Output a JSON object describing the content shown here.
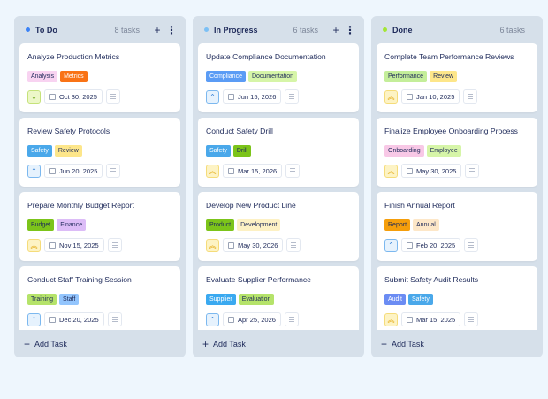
{
  "priority_styles": {
    "low": {
      "icon": "chevron-down-icon",
      "glyph": "⌄",
      "bg": "#ecf7c8",
      "border": "#c5e27a",
      "color": "#65a30d"
    },
    "medium": {
      "icon": "chevron-up-icon",
      "glyph": "⌃",
      "bg": "#e6f2fd",
      "border": "#7cb8ef",
      "color": "#2b7bd6"
    },
    "high": {
      "icon": "double-chevron-up-icon",
      "glyph": "︽",
      "bg": "#fdf3c4",
      "border": "#f5dc7a",
      "color": "#e0a200"
    }
  },
  "columns": [
    {
      "title": "To Do",
      "count": "8 tasks",
      "dot": "#3b82f6",
      "add_label": "Add Task",
      "cards": [
        {
          "title": "Analyze Production Metrics",
          "tags": [
            {
              "label": "Analysis",
              "bg": "#f8d3f1",
              "fg": "#1e2a5a"
            },
            {
              "label": "Metrics",
              "bg": "#f97316",
              "fg": "#fff"
            }
          ],
          "priority": "low",
          "date": "Oct 30, 2025"
        },
        {
          "title": "Review Safety Protocols",
          "tags": [
            {
              "label": "Safety",
              "bg": "#4aa8ea",
              "fg": "#fff"
            },
            {
              "label": "Review",
              "bg": "#fde68a",
              "fg": "#1e2a5a"
            }
          ],
          "priority": "medium",
          "date": "Jun 20, 2025"
        },
        {
          "title": "Prepare Monthly Budget Report",
          "tags": [
            {
              "label": "Budget",
              "bg": "#7cc41a",
              "fg": "#1e2a5a"
            },
            {
              "label": "Finance",
              "bg": "#dcbcf7",
              "fg": "#1e2a5a"
            }
          ],
          "priority": "high",
          "date": "Nov 15, 2025"
        },
        {
          "title": "Conduct Staff Training Session",
          "tags": [
            {
              "label": "Training",
              "bg": "#b5e36a",
              "fg": "#1e2a5a"
            },
            {
              "label": "Staff",
              "bg": "#93c5fd",
              "fg": "#1e2a5a"
            }
          ],
          "priority": "medium",
          "date": "Dec 20, 2025"
        }
      ]
    },
    {
      "title": "In Progress",
      "count": "6 tasks",
      "dot": "#7cc0f5",
      "add_label": "Add Task",
      "cards": [
        {
          "title": "Update Compliance Documentation",
          "tags": [
            {
              "label": "Compliance",
              "bg": "#5b9cf5",
              "fg": "#fff"
            },
            {
              "label": "Documentation",
              "bg": "#d6f5a8",
              "fg": "#1e2a5a"
            }
          ],
          "priority": "medium",
          "date": "Jun 15, 2026"
        },
        {
          "title": "Conduct Safety Drill",
          "tags": [
            {
              "label": "Safety",
              "bg": "#4aa8ea",
              "fg": "#fff"
            },
            {
              "label": "Drill",
              "bg": "#7cc41a",
              "fg": "#1e2a5a"
            }
          ],
          "priority": "high",
          "date": "Mar 15, 2026"
        },
        {
          "title": "Develop New Product Line",
          "tags": [
            {
              "label": "Product",
              "bg": "#7cc41a",
              "fg": "#1e2a5a"
            },
            {
              "label": "Development",
              "bg": "#fdf1c4",
              "fg": "#1e2a5a"
            }
          ],
          "priority": "high",
          "date": "May 30, 2026"
        },
        {
          "title": "Evaluate Supplier Performance",
          "tags": [
            {
              "label": "Supplier",
              "bg": "#3aa9f0",
              "fg": "#fff"
            },
            {
              "label": "Evaluation",
              "bg": "#b5e36a",
              "fg": "#1e2a5a"
            }
          ],
          "priority": "medium",
          "date": "Apr 25, 2026"
        }
      ]
    },
    {
      "title": "Done",
      "count": "6 tasks",
      "dot": "#a3e635",
      "add_label": "Add Task",
      "cards": [
        {
          "title": "Complete Team Performance Reviews",
          "tags": [
            {
              "label": "Performance",
              "bg": "#c4ee9a",
              "fg": "#1e2a5a"
            },
            {
              "label": "Review",
              "bg": "#fde68a",
              "fg": "#1e2a5a"
            }
          ],
          "priority": "high",
          "date": "Jan 10, 2025"
        },
        {
          "title": "Finalize Employee Onboarding Process",
          "tags": [
            {
              "label": "Onboarding",
              "bg": "#f8c8e6",
              "fg": "#1e2a5a"
            },
            {
              "label": "Employee",
              "bg": "#d6f5a8",
              "fg": "#1e2a5a"
            }
          ],
          "priority": "high",
          "date": "May 30, 2025"
        },
        {
          "title": "Finish Annual Report",
          "tags": [
            {
              "label": "Report",
              "bg": "#f59e0b",
              "fg": "#1e2a5a"
            },
            {
              "label": "Annual",
              "bg": "#fde7c8",
              "fg": "#1e2a5a"
            }
          ],
          "priority": "medium",
          "date": "Feb 20, 2025"
        },
        {
          "title": "Submit Safety Audit Results",
          "tags": [
            {
              "label": "Audit",
              "bg": "#6b8cf3",
              "fg": "#fff"
            },
            {
              "label": "Safety",
              "bg": "#4aa8ea",
              "fg": "#fff"
            }
          ],
          "priority": "high",
          "date": "Mar 15, 2025"
        }
      ]
    }
  ]
}
